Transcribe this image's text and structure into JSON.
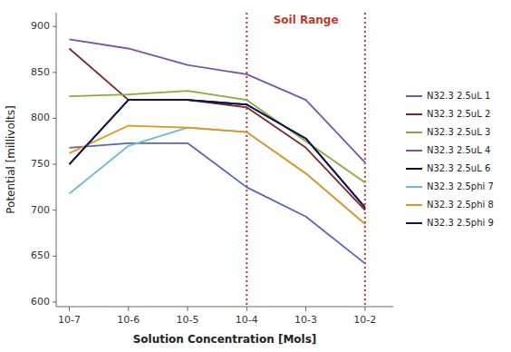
{
  "chart_data": {
    "type": "line",
    "log": "x",
    "grid": false,
    "legend": "right",
    "x_label": "Solution Concentration [Mols]",
    "y_label": "Potential [millivolts]",
    "x": [
      1e-07,
      1e-06,
      1e-05,
      0.0001,
      0.001,
      0.01
    ],
    "xlim": [
      6e-08,
      0.03
    ],
    "xticks": [
      {
        "value": 1e-07,
        "label": "10-7"
      },
      {
        "value": 1e-06,
        "label": "10-6"
      },
      {
        "value": 1e-05,
        "label": "10-5"
      },
      {
        "value": 0.0001,
        "label": "10-4"
      },
      {
        "value": 0.001,
        "label": "10-3"
      },
      {
        "value": 0.01,
        "label": "10-2"
      }
    ],
    "ylim": [
      595,
      915
    ],
    "yticks": [
      600,
      650,
      700,
      750,
      800,
      850,
      900
    ],
    "series": [
      {
        "name": "N32.3 2.5uL 1",
        "color": "#5566BB",
        "values": [
          768,
          773,
          773,
          725,
          693,
          642
        ]
      },
      {
        "name": "N32.3 2.5uL 2",
        "color": "#7B2828",
        "values": [
          876,
          820,
          820,
          812,
          768,
          700
        ]
      },
      {
        "name": "N32.3 2.5uL 3",
        "color": "#8AAA3A",
        "values": [
          824,
          826,
          830,
          820,
          775,
          730
        ]
      },
      {
        "name": "N32.3 2.5uL 4",
        "color": "#7755AA",
        "values": [
          886,
          876,
          858,
          848,
          820,
          752
        ]
      },
      {
        "name": "N32.3 2.5uL 6",
        "color": "#1A0A05",
        "values": [
          750,
          820,
          820,
          815,
          778,
          703
        ]
      },
      {
        "name": "N32.3 2.5phi 7",
        "color": "#6BBBD4",
        "values": [
          718,
          770,
          790,
          785,
          740,
          685
        ]
      },
      {
        "name": "N32.3 2.5phi 8",
        "color": "#E8921A",
        "values": [
          762,
          792,
          790,
          785,
          740,
          685
        ]
      },
      {
        "name": "N32.3 2.5phi 9",
        "color": "#0A1560",
        "values": [
          750,
          820,
          820,
          815,
          778,
          703
        ]
      }
    ],
    "annotations": [
      {
        "text": "Soil Range",
        "x_range": [
          0.0001,
          0.01
        ],
        "y": 912,
        "color": "#C0392B"
      }
    ]
  }
}
